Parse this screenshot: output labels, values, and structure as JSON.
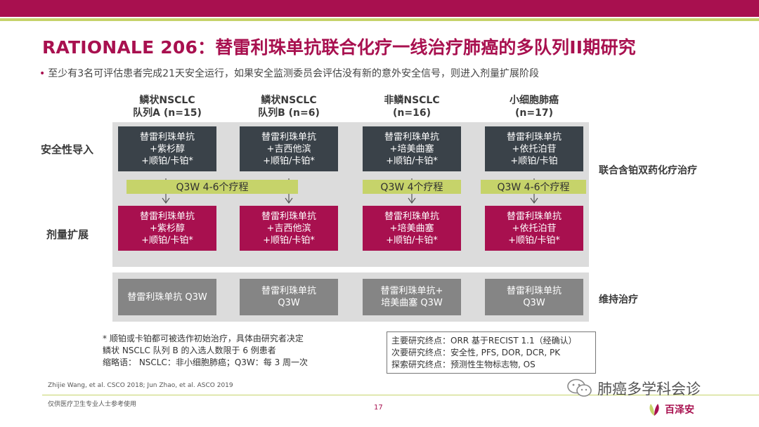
{
  "title": "RATIONALE 206：替雷利珠单抗联合化疗一线治疗肺癌的多队列II期研究",
  "bullet": "至少有3名可评估患者完成21天安全运行，如果安全监测委员会评估没有新的意外安全信号，则进入剂量扩展阶段",
  "columns": [
    {
      "line1": "鳞状NSCLC",
      "line2": "队列A (n=15)"
    },
    {
      "line1": "鳞状NSCLC",
      "line2": "队列B (n=6)"
    },
    {
      "line1": "非鳞NSCLC",
      "line2": "(n=16)"
    },
    {
      "line1": "小细胞肺癌",
      "line2": "(n=17)"
    }
  ],
  "row_labels": {
    "safety": "安全性导入",
    "expansion": "剂量扩展"
  },
  "side_labels": {
    "combo": "联合含铂双药化疗治疗",
    "maintenance": "维持治疗"
  },
  "safety_boxes": [
    [
      "替雷利珠单抗",
      "+紫杉醇",
      "+顺铂/卡铂*"
    ],
    [
      "替雷利珠单抗",
      "+吉西他滨",
      "+顺铂/卡铂*"
    ],
    [
      "替雷利珠单抗",
      "+培美曲塞",
      "+顺铂/卡铂*"
    ],
    [
      "替雷利珠单抗",
      "+依托泊苷",
      "+顺铂/卡铂"
    ]
  ],
  "cycles": {
    "ab": "Q3W 4-6个疗程",
    "c": "Q3W 4个疗程",
    "d": "Q3W 4-6个疗程"
  },
  "expansion_boxes": [
    [
      "替雷利珠单抗",
      "+紫杉醇",
      "+顺铂/卡铂*"
    ],
    [
      "替雷利珠单抗",
      "+吉西他滨",
      "+顺铂/卡铂*"
    ],
    [
      "替雷利珠单抗",
      "+培美曲塞",
      "+顺铂/卡铂*"
    ],
    [
      "替雷利珠单抗",
      "+依托泊苷",
      "+顺铂/卡铂*"
    ]
  ],
  "maintenance_boxes": [
    [
      "替雷利珠单抗  Q3W"
    ],
    [
      "替雷利珠单抗",
      "Q3W"
    ],
    [
      "替雷利珠单抗+",
      "培美曲塞   Q3W"
    ],
    [
      "替雷利珠单抗",
      "Q3W"
    ]
  ],
  "notes": [
    "* 顺铂或卡铂都可被选作初始治疗，具体由研究者决定",
    "鳞状 NSCLC 队列 B 的入选人数限于 6 例患者",
    "缩略语：  NSCLC：非小细胞肺癌；Q3W：每 3 周一次"
  ],
  "endpoints": [
    "主要研究终点：ORR 基于RECIST 1.1（经确认）",
    "次要研究终点：安全性, PFS, DOR, DCR, PK",
    "探索研究终点：预测性生物标志物, OS"
  ],
  "references": "Zhijie Wang, et al. CSCO 2018; Jun Zhao, et al. ASCO 2019",
  "disclaimer": "仅供医疗卫生专业人士参考使用",
  "page_number": "17",
  "wechat_name": "肺癌多学科会诊",
  "brand_name": "百泽安",
  "colors": {
    "magenta": "#a8104f",
    "lime": "#c6d36a",
    "dark": "#3a4249",
    "grey": "#858585",
    "panel": "#dcdcdc"
  }
}
